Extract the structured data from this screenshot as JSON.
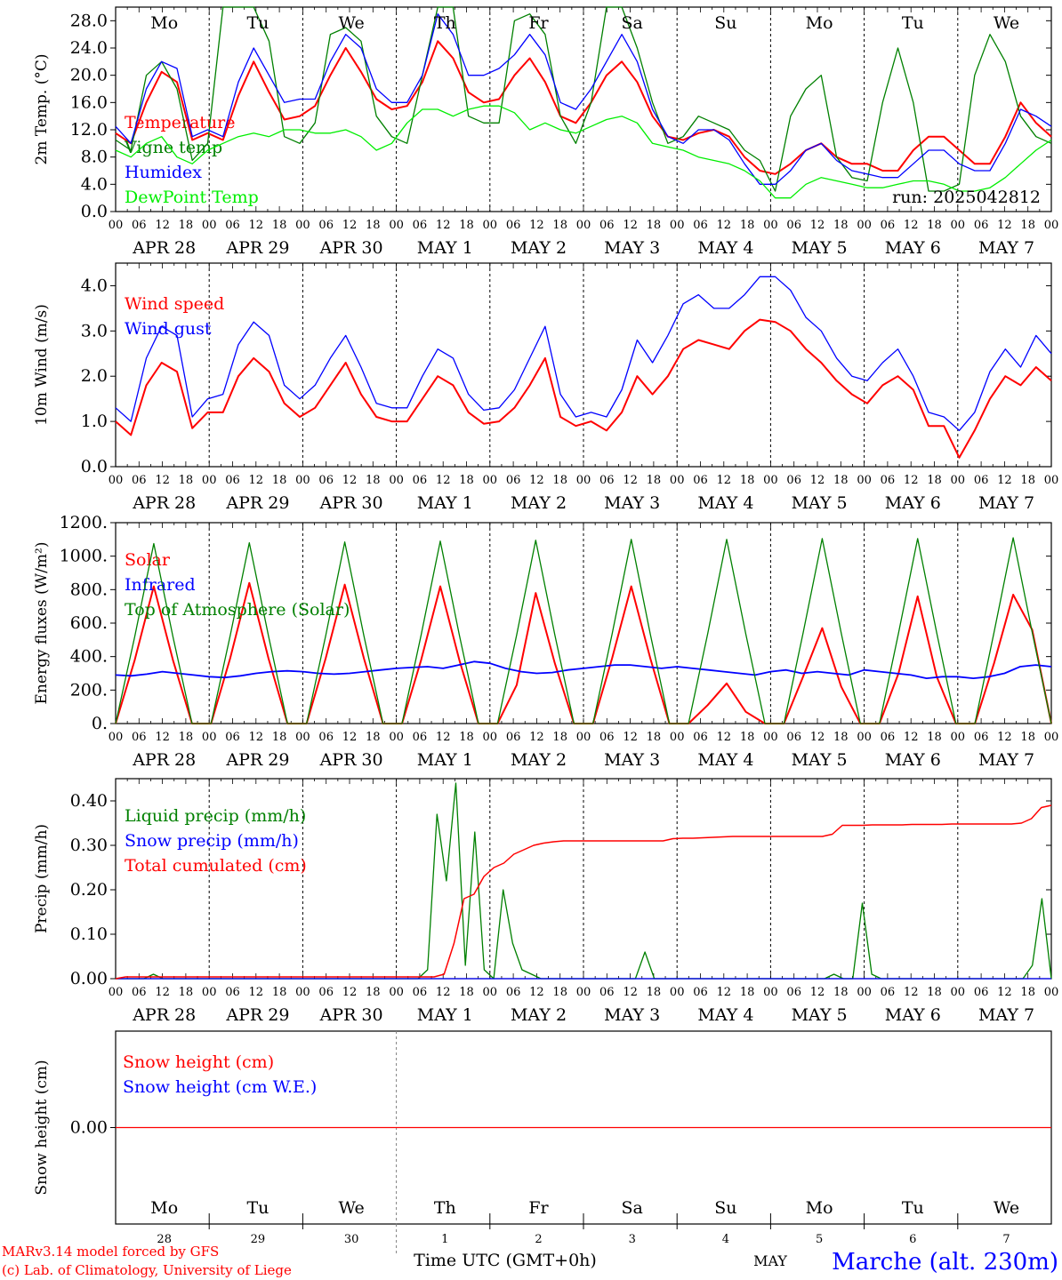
{
  "colors": {
    "red": "#ff0000",
    "blue": "#0000ff",
    "green": "#008000",
    "lightgreen": "#00ee00",
    "grey": "#808080"
  },
  "week_days": [
    {
      "label": "Mo",
      "weekend": false
    },
    {
      "label": "Tu",
      "weekend": false
    },
    {
      "label": "We",
      "weekend": false
    },
    {
      "label": "Th",
      "weekend": false
    },
    {
      "label": "Fr",
      "weekend": false
    },
    {
      "label": "Sa",
      "weekend": true
    },
    {
      "label": "Su",
      "weekend": true
    },
    {
      "label": "Mo",
      "weekend": false
    },
    {
      "label": "Tu",
      "weekend": false
    },
    {
      "label": "We",
      "weekend": false
    }
  ],
  "dates": [
    "APR 28",
    "APR 29",
    "APR 30",
    "MAY  1",
    "MAY  2",
    "MAY  3",
    "MAY  4",
    "MAY  5",
    "MAY  6",
    "MAY  7"
  ],
  "hour_ticks": [
    "00",
    "06",
    "12",
    "18"
  ],
  "hour_tick_end": "00",
  "bottom_day_numbers": [
    "28",
    "29",
    "30",
    "1",
    "2",
    "3",
    "4",
    "5",
    "6",
    "7"
  ],
  "footer": {
    "line1": "MARv3.14 model forced by GFS",
    "line2": "(c) Lab. of Climatology, University of Liege",
    "time_label": "Time UTC (GMT+0h)",
    "month": "MAY",
    "station": "Marche (alt. 230m)"
  },
  "chart_data": [
    {
      "id": "temperature",
      "type": "line",
      "ylabel": "2m Temp. (°C)",
      "ylim": [
        0,
        30
      ],
      "yticks": [
        "0.0",
        "4.0",
        "8.0",
        "12.0",
        "16.0",
        "20.0",
        "24.0",
        "28.0"
      ],
      "ytick_values": [
        0,
        4,
        8,
        12,
        16,
        20,
        24,
        28
      ],
      "annotation": "run: 2025042812",
      "x_hours_step": 6,
      "series": [
        {
          "name": "Temperature",
          "color": "#ff0000",
          "width": 2,
          "values": [
            11.5,
            10,
            16,
            20.5,
            19,
            10.5,
            11.5,
            10.5,
            17,
            22,
            17.5,
            13.5,
            14,
            15.5,
            20,
            24,
            20.5,
            16.5,
            15,
            15.5,
            19,
            25,
            22.5,
            17.5,
            16,
            16.5,
            20,
            22.5,
            19,
            14,
            13,
            16,
            20,
            22,
            19,
            14,
            11,
            10.5,
            11.5,
            12,
            11,
            8,
            6,
            5.5,
            7,
            9,
            10,
            8,
            7,
            7,
            6,
            6,
            9,
            11,
            11,
            9,
            7,
            7,
            11,
            16,
            13,
            11
          ]
        },
        {
          "name": "Vigne temp",
          "color": "#008000",
          "width": 1.3,
          "values": [
            10.5,
            9,
            20,
            22,
            18,
            7.5,
            10,
            30,
            30,
            30,
            25,
            11,
            10,
            13,
            26,
            27,
            25,
            14,
            11,
            10,
            20,
            30,
            30,
            14,
            13,
            13,
            28,
            29,
            26,
            14,
            10,
            16,
            30,
            30,
            24,
            16,
            10,
            11,
            14,
            13,
            12,
            9,
            7.5,
            3,
            14,
            18,
            20,
            8,
            5,
            4.5,
            16,
            24,
            16,
            3,
            3,
            4,
            20,
            26,
            22,
            14,
            11,
            10
          ]
        },
        {
          "name": "Humidex",
          "color": "#0000ff",
          "width": 1.3,
          "values": [
            12.5,
            10,
            18,
            22,
            21,
            11,
            12,
            11,
            19,
            24,
            20,
            16,
            16.5,
            16.5,
            22,
            26,
            24,
            18,
            16,
            16,
            20,
            29,
            26,
            20,
            20,
            21,
            23,
            26,
            23,
            16,
            15,
            18,
            22,
            26,
            22,
            15,
            11,
            10,
            12,
            12,
            10.5,
            7,
            4,
            4,
            6,
            9,
            10,
            7.5,
            6,
            5.5,
            5,
            5,
            7,
            9,
            9,
            7,
            6,
            6,
            10,
            15,
            14,
            12.5
          ]
        },
        {
          "name": "DewPoint Temp",
          "color": "#00ee00",
          "width": 1.3,
          "values": [
            9,
            8,
            10,
            11,
            8,
            7,
            9,
            10,
            11,
            11.5,
            11,
            12,
            12,
            11.5,
            11.5,
            12,
            11,
            9,
            10,
            13,
            15,
            15,
            14,
            15,
            15.5,
            15.5,
            14.5,
            12,
            13,
            12,
            11.5,
            12.5,
            13.5,
            14,
            13,
            10,
            9.5,
            9,
            8,
            7.5,
            7,
            6,
            4.5,
            2,
            2,
            4,
            5,
            4.5,
            4,
            3.5,
            3.5,
            4,
            4.5,
            4.5,
            4,
            3,
            3,
            3.5,
            5,
            7,
            9,
            10.5
          ]
        }
      ]
    },
    {
      "id": "wind",
      "type": "line",
      "ylabel": "10m Wind (m/s)",
      "ylim": [
        0,
        4.5
      ],
      "yticks": [
        "0.0",
        "1.0",
        "2.0",
        "3.0",
        "4.0"
      ],
      "ytick_values": [
        0,
        1,
        2,
        3,
        4
      ],
      "x_hours_step": 6,
      "series": [
        {
          "name": "Wind speed",
          "color": "#ff0000",
          "width": 2,
          "values": [
            1,
            0.7,
            1.8,
            2.3,
            2.1,
            0.85,
            1.2,
            1.2,
            2.0,
            2.4,
            2.1,
            1.4,
            1.1,
            1.3,
            1.8,
            2.3,
            1.6,
            1.1,
            1.0,
            1.0,
            1.5,
            2.0,
            1.8,
            1.2,
            0.95,
            1.0,
            1.3,
            1.8,
            2.4,
            1.1,
            0.9,
            1.0,
            0.8,
            1.2,
            2.0,
            1.6,
            2.0,
            2.6,
            2.8,
            2.7,
            2.6,
            3.0,
            3.25,
            3.2,
            3.0,
            2.6,
            2.3,
            1.9,
            1.6,
            1.4,
            1.8,
            2.0,
            1.7,
            0.9,
            0.9,
            0.2,
            0.8,
            1.5,
            2.0,
            1.8,
            2.2,
            1.9
          ]
        },
        {
          "name": "Wind gust",
          "color": "#0000ff",
          "width": 1.3,
          "values": [
            1.3,
            1.0,
            2.4,
            3.1,
            2.9,
            1.1,
            1.5,
            1.6,
            2.7,
            3.2,
            2.9,
            1.8,
            1.5,
            1.8,
            2.4,
            2.9,
            2.2,
            1.4,
            1.3,
            1.3,
            2.0,
            2.6,
            2.4,
            1.6,
            1.25,
            1.3,
            1.7,
            2.4,
            3.1,
            1.6,
            1.1,
            1.2,
            1.1,
            1.7,
            2.8,
            2.3,
            2.9,
            3.6,
            3.8,
            3.5,
            3.5,
            3.8,
            4.2,
            4.2,
            3.9,
            3.3,
            3.0,
            2.4,
            2.0,
            1.9,
            2.3,
            2.6,
            2.0,
            1.2,
            1.1,
            0.8,
            1.2,
            2.1,
            2.6,
            2.2,
            2.9,
            2.5
          ]
        }
      ]
    },
    {
      "id": "energy",
      "type": "line",
      "ylabel": "Energy fluxes (W/m²)",
      "ylim": [
        0,
        1200
      ],
      "yticks": [
        "0.",
        "200.",
        "400.",
        "600.",
        "800.",
        "1000.",
        "1200."
      ],
      "ytick_values": [
        0,
        200,
        400,
        600,
        800,
        1000,
        1200
      ],
      "x_hours_step": 6,
      "series": [
        {
          "name": "Solar",
          "color": "#ff0000",
          "width": 2,
          "values": [
            0,
            380,
            820,
            380,
            0,
            0,
            390,
            840,
            390,
            0,
            0,
            390,
            830,
            390,
            0,
            0,
            380,
            820,
            380,
            0,
            0,
            230,
            780,
            360,
            0,
            0,
            390,
            820,
            390,
            0,
            0,
            110,
            240,
            70,
            0,
            0,
            280,
            570,
            220,
            0,
            0,
            300,
            760,
            280,
            0,
            0,
            360,
            770,
            560,
            0
          ]
        },
        {
          "name": "Infrared",
          "color": "#0000ff",
          "width": 1.8,
          "values": [
            290,
            285,
            295,
            310,
            300,
            290,
            280,
            275,
            285,
            300,
            310,
            315,
            310,
            300,
            295,
            300,
            310,
            320,
            330,
            335,
            340,
            330,
            350,
            370,
            360,
            330,
            310,
            300,
            305,
            320,
            330,
            340,
            350,
            350,
            340,
            330,
            340,
            330,
            320,
            310,
            300,
            290,
            310,
            320,
            300,
            310,
            300,
            290,
            320,
            310,
            300,
            290,
            270,
            280,
            280,
            270,
            280,
            300,
            340,
            350,
            340
          ]
        },
        {
          "name": "Top of Atmosphere (Solar)",
          "color": "#008000",
          "width": 1.3,
          "values": [
            0,
            520,
            1075,
            520,
            0,
            0,
            525,
            1080,
            525,
            0,
            0,
            525,
            1085,
            525,
            0,
            0,
            530,
            1090,
            530,
            0,
            0,
            530,
            1095,
            530,
            0,
            0,
            535,
            1100,
            535,
            0,
            0,
            535,
            1100,
            535,
            0,
            0,
            540,
            1105,
            540,
            0,
            0,
            540,
            1105,
            540,
            0,
            0,
            545,
            1110,
            545,
            0
          ]
        }
      ]
    },
    {
      "id": "precip",
      "type": "line",
      "ylabel": "Precip (mm/h)",
      "ylim": [
        0,
        0.45
      ],
      "yticks": [
        "0.00",
        "0.10",
        "0.20",
        "0.30",
        "0.40"
      ],
      "ytick_values": [
        0,
        0.1,
        0.2,
        0.3,
        0.4
      ],
      "x_hours_step": 3,
      "series": [
        {
          "name": "Liquid precip (mm/h)",
          "color": "#008000",
          "width": 1.3,
          "values": [
            0,
            0,
            0,
            0,
            0.01,
            0,
            0,
            0,
            0,
            0,
            0,
            0,
            0,
            0,
            0,
            0,
            0,
            0,
            0,
            0,
            0,
            0,
            0,
            0,
            0,
            0,
            0,
            0,
            0,
            0,
            0,
            0,
            0,
            0.02,
            0.37,
            0.22,
            0.44,
            0.03,
            0.33,
            0.02,
            0,
            0.2,
            0.08,
            0.02,
            0.01,
            0,
            0,
            0,
            0,
            0,
            0,
            0,
            0,
            0,
            0,
            0,
            0.06,
            0,
            0,
            0,
            0,
            0,
            0,
            0,
            0,
            0,
            0,
            0,
            0,
            0,
            0,
            0,
            0,
            0,
            0,
            0,
            0.01,
            0,
            0,
            0.17,
            0.01,
            0,
            0,
            0,
            0,
            0,
            0,
            0,
            0,
            0,
            0,
            0,
            0,
            0,
            0,
            0,
            0,
            0.03,
            0.18,
            0
          ]
        },
        {
          "name": "Snow precip (mm/h)",
          "color": "#0000ff",
          "width": 1.3,
          "values": [
            0,
            0
          ]
        },
        {
          "name": "Total cumulated (cm)",
          "color": "#ff0000",
          "width": 1.5,
          "values": [
            0,
            0.004,
            0.004,
            0.004,
            0.004,
            0.004,
            0.004,
            0.004,
            0.004,
            0.004,
            0.004,
            0.004,
            0.004,
            0.004,
            0.004,
            0.004,
            0.004,
            0.004,
            0.004,
            0.004,
            0.004,
            0.004,
            0.004,
            0.004,
            0.004,
            0.004,
            0.004,
            0.004,
            0.004,
            0.004,
            0.004,
            0.004,
            0.004,
            0.01,
            0.08,
            0.18,
            0.19,
            0.23,
            0.25,
            0.26,
            0.28,
            0.29,
            0.3,
            0.305,
            0.308,
            0.31,
            0.31,
            0.31,
            0.31,
            0.31,
            0.31,
            0.31,
            0.31,
            0.31,
            0.31,
            0.31,
            0.315,
            0.316,
            0.316,
            0.317,
            0.318,
            0.319,
            0.32,
            0.32,
            0.32,
            0.32,
            0.32,
            0.32,
            0.32,
            0.32,
            0.32,
            0.32,
            0.325,
            0.345,
            0.345,
            0.345,
            0.346,
            0.346,
            0.346,
            0.346,
            0.347,
            0.347,
            0.347,
            0.347,
            0.348,
            0.348,
            0.348,
            0.348,
            0.348,
            0.348,
            0.348,
            0.35,
            0.36,
            0.385,
            0.39
          ]
        }
      ]
    },
    {
      "id": "snow",
      "type": "line",
      "ylabel": "Snow height (cm)",
      "ylim": [
        -1,
        1
      ],
      "yticks": [
        "0.00"
      ],
      "ytick_values": [
        0
      ],
      "x_hours_step": 24,
      "series": [
        {
          "name": "Snow height (cm)",
          "color": "#ff0000",
          "width": 1.3,
          "values": [
            0,
            0
          ]
        },
        {
          "name": "Snow height (cm W.E.)",
          "color": "#0000ff",
          "width": 1.3,
          "values": []
        }
      ]
    }
  ]
}
